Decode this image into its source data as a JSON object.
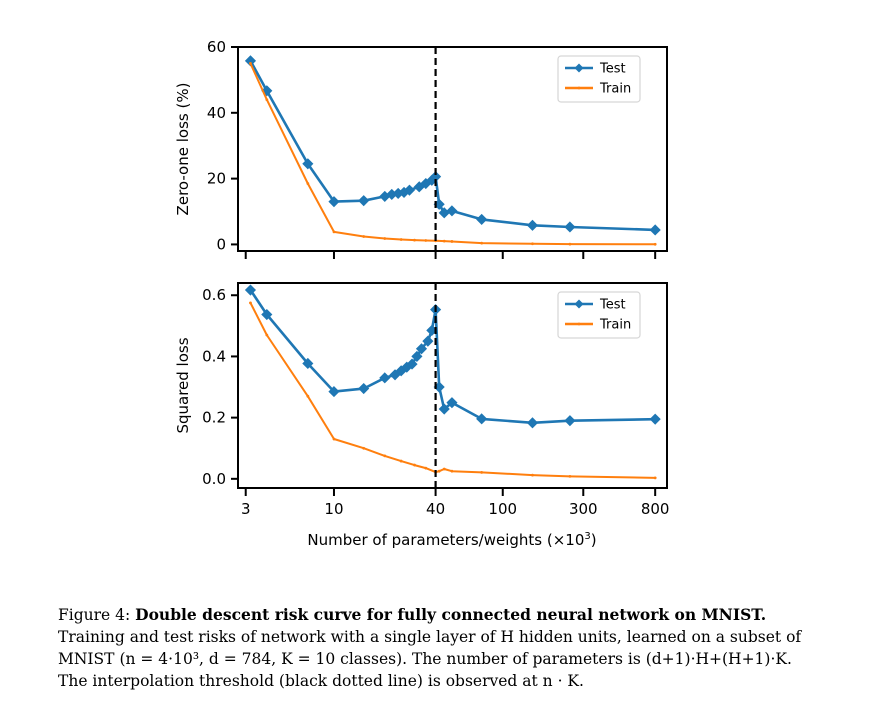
{
  "chart_data": [
    {
      "type": "line",
      "xscale": "log",
      "ylabel": "Zero-one loss (%)",
      "ylim": [
        -2,
        60
      ],
      "yticks": [
        0,
        20,
        40,
        60
      ],
      "ytick_labels": [
        "0",
        "20",
        "40",
        "60"
      ],
      "xlim": [
        2.7,
        940
      ],
      "xticks": [
        3,
        10,
        40,
        100,
        300,
        800
      ],
      "xtick_labels": [
        "",
        "",
        "",
        "",
        "",
        ""
      ],
      "vline_x": 40,
      "legend_position": "top-right",
      "series": [
        {
          "name": "Test",
          "color": "#1f77b4",
          "marker": "diamond",
          "x": [
            3.2,
            4,
            7,
            10,
            15,
            20,
            22,
            24,
            26,
            28,
            32,
            35,
            38,
            40,
            42,
            45,
            50,
            75,
            150,
            250,
            800
          ],
          "y": [
            55.8,
            46.7,
            24.5,
            13.0,
            13.3,
            14.6,
            15.2,
            15.5,
            15.8,
            16.5,
            17.5,
            18.5,
            19.5,
            20.6,
            12.2,
            9.6,
            10.2,
            7.6,
            5.8,
            5.3,
            4.4
          ]
        },
        {
          "name": "Train",
          "color": "#ff7f0e",
          "marker": "small",
          "x": [
            3.2,
            4,
            7,
            10,
            15,
            20,
            25,
            30,
            35,
            40,
            45,
            50,
            75,
            150,
            250,
            800
          ],
          "y": [
            55,
            44,
            18.5,
            3.8,
            2.4,
            1.8,
            1.5,
            1.3,
            1.2,
            1.1,
            1.0,
            0.9,
            0.4,
            0.2,
            0.1,
            0.05
          ]
        }
      ]
    },
    {
      "type": "line",
      "xscale": "log",
      "ylabel": "Squared loss",
      "xlabel": "Number of parameters/weights (×10",
      "xlabel_exp": "3",
      "xlabel_close": ")",
      "ylim": [
        -0.03,
        0.64
      ],
      "yticks": [
        0,
        0.2,
        0.4,
        0.6
      ],
      "ytick_labels": [
        "0.0",
        "0.2",
        "0.4",
        "0.6"
      ],
      "xlim": [
        2.7,
        940
      ],
      "xticks": [
        3,
        10,
        40,
        100,
        300,
        800
      ],
      "xtick_labels": [
        "3",
        "10",
        "40",
        "100",
        "300",
        "800"
      ],
      "vline_x": 40,
      "legend_position": "top-right",
      "series": [
        {
          "name": "Test",
          "color": "#1f77b4",
          "marker": "diamond",
          "x": [
            3.2,
            4,
            7,
            10,
            15,
            20,
            23,
            25,
            27,
            29,
            31,
            33,
            36,
            38,
            40,
            42,
            45,
            50,
            75,
            150,
            250,
            800
          ],
          "y": [
            0.617,
            0.537,
            0.377,
            0.285,
            0.295,
            0.33,
            0.34,
            0.353,
            0.365,
            0.375,
            0.4,
            0.425,
            0.45,
            0.485,
            0.553,
            0.3,
            0.228,
            0.249,
            0.196,
            0.183,
            0.19,
            0.195
          ]
        },
        {
          "name": "Train",
          "color": "#ff7f0e",
          "marker": "small",
          "x": [
            3.2,
            4,
            7,
            10,
            15,
            20,
            25,
            30,
            35,
            40,
            42,
            45,
            50,
            75,
            150,
            250,
            800
          ],
          "y": [
            0.575,
            0.47,
            0.27,
            0.13,
            0.1,
            0.075,
            0.058,
            0.045,
            0.035,
            0.022,
            0.025,
            0.032,
            0.025,
            0.021,
            0.012,
            0.008,
            0.003
          ]
        }
      ]
    }
  ],
  "caption": {
    "prefix": "Figure 4: ",
    "bold": "Double descent risk curve for fully connected neural network on MNIST.",
    "line2": "Training and test risks of network with a single layer of H hidden units, learned on a subset of",
    "line3": "MNIST (n = 4·10³, d = 784, K = 10 classes). The number of parameters is (d+1)·H+(H+1)·K.",
    "line4": "The interpolation threshold (black dotted line) is observed at n · K."
  }
}
